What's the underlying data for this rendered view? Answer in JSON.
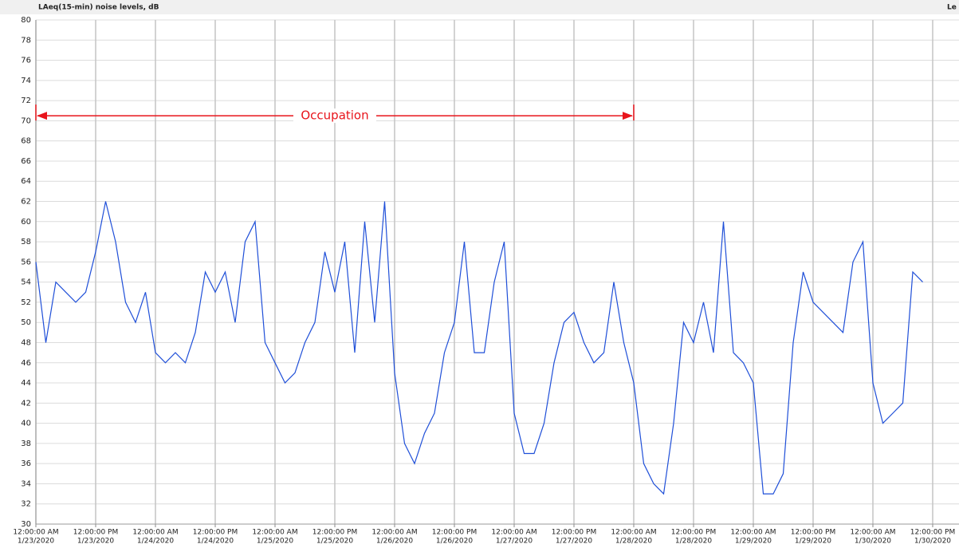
{
  "chart_data": {
    "type": "line",
    "title": "LAeq(15-min) noise levels, dB",
    "legend_title": "Le",
    "x": [
      "2020-01-23T00:00:00",
      "2020-01-23T02:00:00",
      "2020-01-23T04:00:00",
      "2020-01-23T06:00:00",
      "2020-01-23T08:00:00",
      "2020-01-23T10:00:00",
      "2020-01-23T12:00:00",
      "2020-01-23T14:00:00",
      "2020-01-23T16:00:00",
      "2020-01-23T18:00:00",
      "2020-01-23T20:00:00",
      "2020-01-23T22:00:00",
      "2020-01-24T00:00:00",
      "2020-01-24T02:00:00",
      "2020-01-24T04:00:00",
      "2020-01-24T06:00:00",
      "2020-01-24T08:00:00",
      "2020-01-24T10:00:00",
      "2020-01-24T12:00:00",
      "2020-01-24T14:00:00",
      "2020-01-24T16:00:00",
      "2020-01-24T18:00:00",
      "2020-01-24T20:00:00",
      "2020-01-24T22:00:00",
      "2020-01-25T00:00:00",
      "2020-01-25T02:00:00",
      "2020-01-25T04:00:00",
      "2020-01-25T06:00:00",
      "2020-01-25T08:00:00",
      "2020-01-25T10:00:00",
      "2020-01-25T12:00:00",
      "2020-01-25T14:00:00",
      "2020-01-25T16:00:00",
      "2020-01-25T18:00:00",
      "2020-01-25T20:00:00",
      "2020-01-25T22:00:00",
      "2020-01-26T00:00:00",
      "2020-01-26T02:00:00",
      "2020-01-26T04:00:00",
      "2020-01-26T06:00:00",
      "2020-01-26T08:00:00",
      "2020-01-26T10:00:00",
      "2020-01-26T12:00:00",
      "2020-01-26T14:00:00",
      "2020-01-26T16:00:00",
      "2020-01-26T18:00:00",
      "2020-01-26T20:00:00",
      "2020-01-26T22:00:00",
      "2020-01-27T00:00:00",
      "2020-01-27T02:00:00",
      "2020-01-27T04:00:00",
      "2020-01-27T06:00:00",
      "2020-01-27T08:00:00",
      "2020-01-27T10:00:00",
      "2020-01-27T12:00:00",
      "2020-01-27T14:00:00",
      "2020-01-27T16:00:00",
      "2020-01-27T18:00:00",
      "2020-01-27T20:00:00",
      "2020-01-27T22:00:00",
      "2020-01-28T00:00:00",
      "2020-01-28T02:00:00",
      "2020-01-28T04:00:00",
      "2020-01-28T06:00:00",
      "2020-01-28T08:00:00",
      "2020-01-28T10:00:00",
      "2020-01-28T12:00:00",
      "2020-01-28T14:00:00",
      "2020-01-28T16:00:00",
      "2020-01-28T18:00:00",
      "2020-01-28T20:00:00",
      "2020-01-28T22:00:00",
      "2020-01-29T00:00:00",
      "2020-01-29T02:00:00",
      "2020-01-29T04:00:00",
      "2020-01-29T06:00:00",
      "2020-01-29T08:00:00",
      "2020-01-29T10:00:00",
      "2020-01-29T12:00:00",
      "2020-01-29T14:00:00",
      "2020-01-29T16:00:00",
      "2020-01-29T18:00:00",
      "2020-01-29T20:00:00",
      "2020-01-29T22:00:00",
      "2020-01-30T00:00:00",
      "2020-01-30T02:00:00",
      "2020-01-30T04:00:00",
      "2020-01-30T06:00:00",
      "2020-01-30T08:00:00",
      "2020-01-30T10:00:00"
    ],
    "series": [
      {
        "name": "LAeq",
        "color": "#1f4fd8",
        "values": [
          56,
          48,
          54,
          53,
          52,
          53,
          57,
          62,
          58,
          52,
          50,
          53,
          47,
          46,
          47,
          46,
          49,
          55,
          53,
          55,
          50,
          58,
          60,
          48,
          46,
          44,
          45,
          48,
          50,
          57,
          53,
          58,
          47,
          60,
          50,
          62,
          45,
          38,
          36,
          39,
          41,
          47,
          50,
          58,
          47,
          47,
          54,
          58,
          41,
          37,
          37,
          40,
          46,
          50,
          51,
          48,
          46,
          47,
          54,
          48,
          44,
          36,
          34,
          33,
          40,
          50,
          48,
          52,
          47,
          60,
          47,
          46,
          44,
          33,
          33,
          35,
          48,
          55,
          52,
          51,
          50,
          49,
          56,
          58,
          44,
          40,
          41,
          42,
          55,
          54
        ]
      }
    ],
    "xlim": [
      "2020-01-23T00:00:00",
      "2020-01-30T17:17:00"
    ],
    "xticks": [
      {
        "value": "2020-01-23T00:00:00",
        "label": [
          "12:00:00 AM",
          "1/23/2020"
        ]
      },
      {
        "value": "2020-01-23T12:00:00",
        "label": [
          "12:00:00 PM",
          "1/23/2020"
        ]
      },
      {
        "value": "2020-01-24T00:00:00",
        "label": [
          "12:00:00 AM",
          "1/24/2020"
        ]
      },
      {
        "value": "2020-01-24T12:00:00",
        "label": [
          "12:00:00 PM",
          "1/24/2020"
        ]
      },
      {
        "value": "2020-01-25T00:00:00",
        "label": [
          "12:00:00 AM",
          "1/25/2020"
        ]
      },
      {
        "value": "2020-01-25T12:00:00",
        "label": [
          "12:00:00 PM",
          "1/25/2020"
        ]
      },
      {
        "value": "2020-01-26T00:00:00",
        "label": [
          "12:00:00 AM",
          "1/26/2020"
        ]
      },
      {
        "value": "2020-01-26T12:00:00",
        "label": [
          "12:00:00 PM",
          "1/26/2020"
        ]
      },
      {
        "value": "2020-01-27T00:00:00",
        "label": [
          "12:00:00 AM",
          "1/27/2020"
        ]
      },
      {
        "value": "2020-01-27T12:00:00",
        "label": [
          "12:00:00 PM",
          "1/27/2020"
        ]
      },
      {
        "value": "2020-01-28T00:00:00",
        "label": [
          "12:00:00 AM",
          "1/28/2020"
        ]
      },
      {
        "value": "2020-01-28T12:00:00",
        "label": [
          "12:00:00 PM",
          "1/28/2020"
        ]
      },
      {
        "value": "2020-01-29T00:00:00",
        "label": [
          "12:00:00 AM",
          "1/29/2020"
        ]
      },
      {
        "value": "2020-01-29T12:00:00",
        "label": [
          "12:00:00 PM",
          "1/29/2020"
        ]
      },
      {
        "value": "2020-01-30T00:00:00",
        "label": [
          "12:00:00 AM",
          "1/30/2020"
        ]
      },
      {
        "value": "2020-01-30T12:00:00",
        "label": [
          "12:00:00 PM",
          "1/30/2020"
        ]
      }
    ],
    "ylim": [
      30,
      80
    ],
    "yticks": [
      30,
      32,
      34,
      36,
      38,
      40,
      42,
      44,
      46,
      48,
      50,
      52,
      54,
      56,
      58,
      60,
      62,
      64,
      66,
      68,
      70,
      72,
      74,
      76,
      78,
      80
    ],
    "grid": true,
    "annotation": {
      "text": "Occupation",
      "x": [
        "2020-01-23T00:00:00",
        "2020-01-28T00:00:00"
      ],
      "y": 70.5,
      "color": "#e8141b"
    }
  }
}
